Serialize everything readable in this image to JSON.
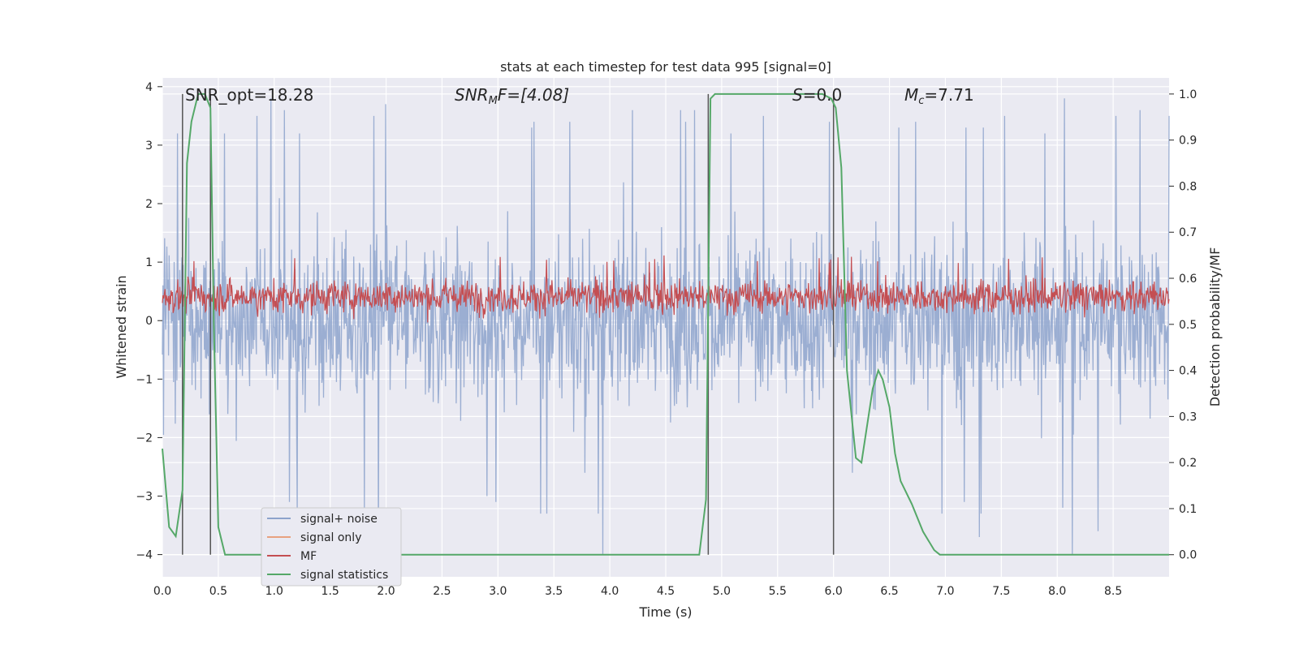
{
  "chart_data": {
    "type": "line",
    "title": "stats at each timestep for test data 995 [signal=0]",
    "xlabel": "Time (s)",
    "ylabel": "Whitened strain",
    "y2label": "Detection probability/MF",
    "xlim": [
      0.0,
      9.0
    ],
    "ylim": [
      -4.38,
      4.15
    ],
    "y2lim": [
      -0.048,
      1.035
    ],
    "xticks": [
      "0.0",
      "0.5",
      "1.0",
      "1.5",
      "2.0",
      "2.5",
      "3.0",
      "3.5",
      "4.0",
      "4.5",
      "5.0",
      "5.5",
      "6.0",
      "6.5",
      "7.0",
      "7.5",
      "8.0",
      "8.5"
    ],
    "yticks": [
      "4",
      "3",
      "2",
      "1",
      "0",
      "−1",
      "−2",
      "−3",
      "−4"
    ],
    "y2ticks": [
      "1.0",
      "0.9",
      "0.8",
      "0.7",
      "0.6",
      "0.5",
      "0.4",
      "0.3",
      "0.2",
      "0.1",
      "0.0"
    ],
    "grid": true,
    "legend_position": "lower-left",
    "annotations": {
      "snr_opt": "SNR_opt=18.28",
      "snr_mf_base": "SNR",
      "snr_mf_sub": "M",
      "snr_mf_rest": "F=[4.08]",
      "s_italic": "S",
      "s_rest": "=0.0",
      "mc_base": "M",
      "mc_sub": "c",
      "mc_rest": "=7.71"
    },
    "series": [
      {
        "name": "signal+ noise",
        "color": "#8da3cc",
        "noise_band_y": [
          -2.3,
          2.3
        ],
        "spike_peaks_y": [
          3.8,
          3.6,
          3.3,
          3.4,
          3.6,
          3.5,
          3.5,
          3.3,
          3.4,
          3.3,
          3.5,
          3.6,
          3.4,
          3.2,
          3.5,
          3.6,
          3.5,
          3.4,
          3.7,
          3.2,
          3.4
        ],
        "spike_troughs_y": [
          -2.6,
          -3.2,
          -3.0,
          -3.3,
          -4.0,
          -3.7,
          -3.3,
          -3.1,
          -3.2,
          -3.0,
          -3.0,
          -3.3,
          -3.6,
          -3.3
        ]
      },
      {
        "name": "signal only",
        "color": "#e8a17f",
        "values": [
          0,
          0
        ]
      },
      {
        "name": "MF",
        "color": "#c44e52",
        "y2_center": 0.56,
        "y2_range": [
          0.5,
          0.63
        ]
      },
      {
        "name": "signal statistics",
        "color": "#55a868",
        "x": [
          0.0,
          0.06,
          0.12,
          0.18,
          0.22,
          0.26,
          0.32,
          0.38,
          0.43,
          0.46,
          0.5,
          0.56,
          0.62,
          1.0,
          2.0,
          3.0,
          4.0,
          4.5,
          4.8,
          4.86,
          4.9,
          4.94,
          5.0,
          5.5,
          5.9,
          5.98,
          6.02,
          6.07,
          6.12,
          6.2,
          6.25,
          6.3,
          6.35,
          6.4,
          6.44,
          6.5,
          6.55,
          6.6,
          6.7,
          6.8,
          6.9,
          6.95,
          7.0,
          8.0,
          9.0
        ],
        "y2": [
          0.23,
          0.06,
          0.04,
          0.14,
          0.85,
          0.94,
          1.0,
          1.0,
          0.97,
          0.5,
          0.06,
          0.0,
          0.0,
          0.0,
          0.0,
          0.0,
          0.0,
          0.0,
          0.0,
          0.12,
          0.99,
          1.0,
          1.0,
          1.0,
          1.0,
          0.99,
          0.97,
          0.84,
          0.4,
          0.21,
          0.2,
          0.28,
          0.36,
          0.4,
          0.38,
          0.32,
          0.22,
          0.16,
          0.11,
          0.05,
          0.01,
          0.0,
          0.0,
          0.0,
          0.0
        ]
      }
    ],
    "vlines_x": [
      0.18,
      0.43,
      4.88,
      6.0
    ]
  }
}
